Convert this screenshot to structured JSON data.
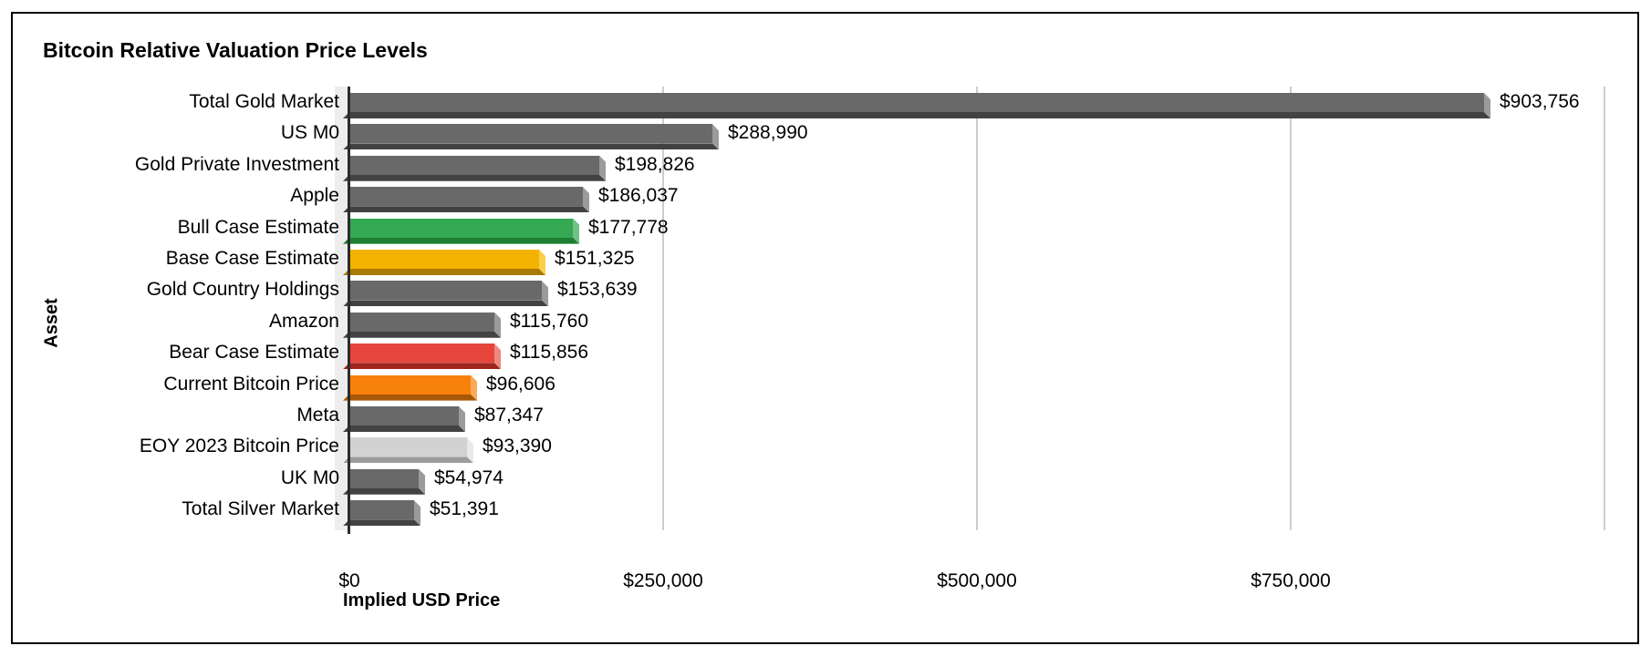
{
  "title": "Bitcoin Relative Valuation Price Levels",
  "chart_data": {
    "type": "bar",
    "orientation": "horizontal",
    "title": "Bitcoin Relative Valuation Price Levels",
    "xlabel": "Implied USD Price",
    "ylabel": "Asset",
    "xlim": [
      0,
      1000000
    ],
    "grid": true,
    "legend": "none",
    "x_ticks": [
      {
        "value": 0,
        "label": "$0"
      },
      {
        "value": 250000,
        "label": "$250,000"
      },
      {
        "value": 500000,
        "label": "$500,000"
      },
      {
        "value": 750000,
        "label": "$750,000"
      }
    ],
    "gridline_values": [
      250000,
      500000,
      750000,
      1000000
    ],
    "bars": [
      {
        "label": "Total Gold Market",
        "value": 903756,
        "display_value": "$903,756",
        "color": "gray"
      },
      {
        "label": "US M0",
        "value": 288990,
        "display_value": "$288,990",
        "color": "gray"
      },
      {
        "label": "Gold Private Investment",
        "value": 198826,
        "display_value": "$198,826",
        "color": "gray"
      },
      {
        "label": "Apple",
        "value": 186037,
        "display_value": "$186,037",
        "color": "gray"
      },
      {
        "label": "Bull Case Estimate",
        "value": 177778,
        "display_value": "$177,778",
        "color": "green"
      },
      {
        "label": "Base Case Estimate",
        "value": 151325,
        "display_value": "$151,325",
        "color": "yellow"
      },
      {
        "label": "Gold Country Holdings",
        "value": 153639,
        "display_value": "$153,639",
        "color": "gray"
      },
      {
        "label": "Amazon",
        "value": 115760,
        "display_value": "$115,760",
        "color": "gray"
      },
      {
        "label": "Bear Case Estimate",
        "value": 115856,
        "display_value": "$115,856",
        "color": "red"
      },
      {
        "label": "Current Bitcoin Price",
        "value": 96606,
        "display_value": "$96,606",
        "color": "orange"
      },
      {
        "label": "Meta",
        "value": 87347,
        "display_value": "$87,347",
        "color": "gray"
      },
      {
        "label": "EOY 2023 Bitcoin Price",
        "value": 93390,
        "display_value": "$93,390",
        "color": "lightgray"
      },
      {
        "label": "UK M0",
        "value": 54974,
        "display_value": "$54,974",
        "color": "gray"
      },
      {
        "label": "Total Silver Market",
        "value": 51391,
        "display_value": "$51,391",
        "color": "gray"
      }
    ],
    "palette": {
      "gray": {
        "main": "#696969",
        "side": "#9b9b9b",
        "bottom": "#424242"
      },
      "green": {
        "main": "#34a853",
        "side": "#6fc184",
        "bottom": "#1e7e34"
      },
      "yellow": {
        "main": "#f5b301",
        "side": "#f9d04b",
        "bottom": "#a87b04"
      },
      "red": {
        "main": "#e5453b",
        "side": "#ee8880",
        "bottom": "#9e241c"
      },
      "orange": {
        "main": "#f8810c",
        "side": "#fbab57",
        "bottom": "#a85806"
      },
      "lightgray": {
        "main": "#d2d2d2",
        "side": "#e9e9e9",
        "bottom": "#9c9c9c"
      }
    },
    "axis_color": "#2b2b2b",
    "gridline_color": "#cccccc"
  }
}
